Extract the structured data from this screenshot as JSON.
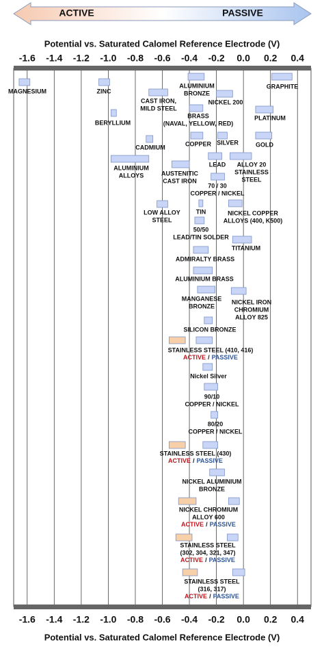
{
  "chart_data": {
    "type": "range-bar",
    "direction_labels": [
      "ACTIVE",
      "PASSIVE"
    ],
    "xlabel": "Potential vs. Saturated Calomel Reference Electrode (V)",
    "xlim": [
      -1.7,
      0.5
    ],
    "xticks": [
      -1.6,
      -1.4,
      -1.2,
      {
        "value": -1,
        "label": "-1.0"
      },
      -0.8,
      -0.6,
      -0.4,
      -0.2,
      {
        "value": 0,
        "label": "0.0"
      },
      0.2,
      0.4
    ],
    "grid": true,
    "color": "#c8d5f6",
    "active_color": "#f7cfa8",
    "materials": [
      {
        "name": [
          "MAGNESIUM"
        ],
        "range": [
          -1.66,
          -1.58
        ]
      },
      {
        "name": [
          "ZINC"
        ],
        "range": [
          -1.07,
          -0.99
        ]
      },
      {
        "name": [
          "BERYLLIUM"
        ],
        "range": [
          -0.98,
          -0.94
        ]
      },
      {
        "name": [
          "ALUMINIUM",
          "ALLOYS"
        ],
        "range": [
          -0.98,
          -0.7
        ]
      },
      {
        "name": [
          "CADMIUM"
        ],
        "range": [
          -0.72,
          -0.67
        ]
      },
      {
        "name": [
          "CAST IRON,",
          "MILD STEEL"
        ],
        "range": [
          -0.7,
          -0.56
        ]
      },
      {
        "name": [
          "ALUMINIUM",
          "BRONZE"
        ],
        "range": [
          -0.41,
          -0.29
        ]
      },
      {
        "name": [
          "GRAPHITE"
        ],
        "range": [
          0.21,
          0.36
        ]
      },
      {
        "name": [
          "NICKEL 200"
        ],
        "range": [
          -0.2,
          -0.08
        ]
      },
      {
        "name": [
          "BRASS",
          "(NAVAL, YELLOW, RED)"
        ],
        "range": [
          -0.4,
          -0.3
        ]
      },
      {
        "name": [
          "PLATINUM"
        ],
        "range": [
          0.09,
          0.22
        ]
      },
      {
        "name": [
          "COPPER"
        ],
        "range": [
          -0.39,
          -0.3
        ]
      },
      {
        "name": [
          "SILVER"
        ],
        "range": [
          -0.19,
          -0.12
        ]
      },
      {
        "name": [
          "GOLD"
        ],
        "range": [
          0.09,
          0.21
        ]
      },
      {
        "name": [
          "LEAD"
        ],
        "range": [
          -0.26,
          -0.16
        ]
      },
      {
        "name": [
          "ALLOY 20",
          "STAINLESS",
          "STEEL"
        ],
        "range": [
          -0.1,
          0.06
        ]
      },
      {
        "name": [
          "AUSTENITIC",
          "CAST IRON"
        ],
        "range": [
          -0.53,
          -0.4
        ]
      },
      {
        "name": [
          "70 / 30",
          "COPPER / NICKEL"
        ],
        "range": [
          -0.24,
          -0.14
        ]
      },
      {
        "name": [
          "TIN"
        ],
        "range": [
          -0.33,
          -0.3
        ]
      },
      {
        "name": [
          "LOW ALLOY",
          "STEEL"
        ],
        "range": [
          -0.64,
          -0.56
        ]
      },
      {
        "name": [
          "NICKEL COPPER",
          "ALLOYS (400, K500)"
        ],
        "range": [
          -0.11,
          -0.01
        ]
      },
      {
        "name": [
          "50/50",
          "LEAD/TIN SOLDER"
        ],
        "range": [
          -0.36,
          -0.29
        ]
      },
      {
        "name": [
          "TITANIUM"
        ],
        "range": [
          -0.08,
          0.06
        ]
      },
      {
        "name": [
          "ADMIRALTY BRASS"
        ],
        "range": [
          -0.37,
          -0.26
        ]
      },
      {
        "name": [
          "ALUMINIUM BRASS"
        ],
        "range": [
          -0.37,
          -0.23
        ]
      },
      {
        "name": [
          "MANGANESE",
          "BRONZE"
        ],
        "range": [
          -0.34,
          -0.21
        ]
      },
      {
        "name": [
          "NICKEL IRON",
          "CHROMIUM",
          "ALLOY 825"
        ],
        "range": [
          -0.09,
          0.02
        ]
      },
      {
        "name": [
          "SILICON BRONZE"
        ],
        "range": [
          -0.29,
          -0.23
        ]
      },
      {
        "name": [
          "STAINLESS STEEL (410, 416)"
        ],
        "active": [
          -0.55,
          -0.43
        ],
        "range": [
          -0.35,
          -0.23
        ],
        "states": [
          "ACTIVE",
          "/",
          "PASSIVE"
        ]
      },
      {
        "name": [
          "Nickel Silver"
        ],
        "range": [
          -0.3,
          -0.23
        ]
      },
      {
        "name": [
          "90/10",
          "COPPER / NICKEL"
        ],
        "range": [
          -0.29,
          -0.19
        ]
      },
      {
        "name": [
          "80/20",
          "COPPER / NICKEL"
        ],
        "range": [
          -0.24,
          -0.19
        ]
      },
      {
        "name": [
          "STAINLESS STEEL (430)"
        ],
        "active": [
          -0.55,
          -0.43
        ],
        "range": [
          -0.3,
          -0.19
        ],
        "states": [
          "ACTIVE",
          "/",
          "PASSIVE"
        ]
      },
      {
        "name": [
          "NICKEL ALUMINIUM",
          "BRONZE"
        ],
        "range": [
          -0.25,
          -0.14
        ]
      },
      {
        "name": [
          "NICKEL CHROMIUM",
          "ALLOY 600"
        ],
        "active": [
          -0.48,
          -0.35
        ],
        "range": [
          -0.11,
          -0.03
        ],
        "states": [
          "ACTIVE",
          "/",
          "PASSIVE"
        ]
      },
      {
        "name": [
          "STAINLESS STEEL",
          "(302, 304, 321, 347)"
        ],
        "active": [
          -0.5,
          -0.38
        ],
        "range": [
          -0.12,
          -0.04
        ],
        "states": [
          "ACTIVE",
          "/",
          "PASSIVE"
        ]
      },
      {
        "name": [
          "STAINLESS STEEL",
          "(316, 317)"
        ],
        "active": [
          -0.45,
          -0.34
        ],
        "range": [
          -0.08,
          0.01
        ],
        "states": [
          "ACTIVE",
          "/",
          "PASSIVE"
        ]
      }
    ]
  }
}
